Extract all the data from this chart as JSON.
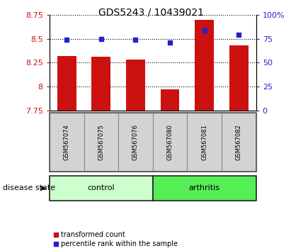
{
  "title": "GDS5243 / 10439021",
  "samples": [
    "GSM567074",
    "GSM567075",
    "GSM567076",
    "GSM567080",
    "GSM567081",
    "GSM567082"
  ],
  "bar_values": [
    8.32,
    8.31,
    8.28,
    7.97,
    8.7,
    8.43
  ],
  "bar_baseline": 7.75,
  "percentile_values": [
    74,
    75,
    74,
    71,
    84,
    79
  ],
  "ylim_left": [
    7.75,
    8.75
  ],
  "ylim_right": [
    0,
    100
  ],
  "yticks_left": [
    7.75,
    8.0,
    8.25,
    8.5,
    8.75
  ],
  "yticks_right": [
    0,
    25,
    50,
    75,
    100
  ],
  "ytick_labels_left": [
    "7.75",
    "8",
    "8.25",
    "8.5",
    "8.75"
  ],
  "ytick_labels_right": [
    "0",
    "25",
    "50",
    "75",
    "100%"
  ],
  "bar_color": "#cc1111",
  "dot_color": "#2222cc",
  "control_color": "#ccffcc",
  "arthritis_color": "#55ee55",
  "disease_state_label": "disease state",
  "legend_bar_label": "transformed count",
  "legend_dot_label": "percentile rank within the sample",
  "title_fontsize": 10,
  "tick_fontsize": 8,
  "sample_fontsize": 6,
  "group_fontsize": 8,
  "legend_fontsize": 7
}
